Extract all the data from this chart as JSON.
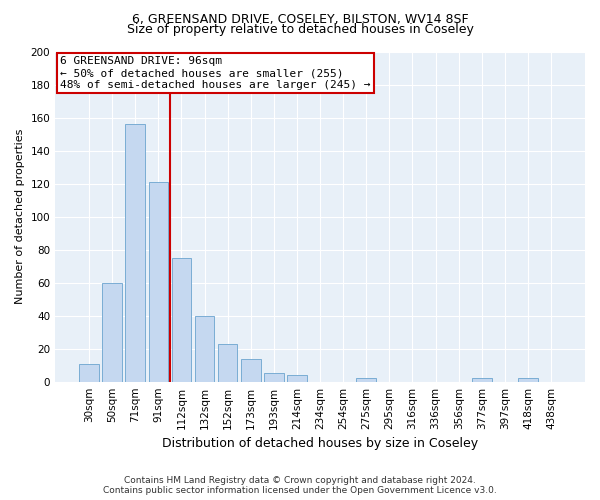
{
  "title1": "6, GREENSAND DRIVE, COSELEY, BILSTON, WV14 8SF",
  "title2": "Size of property relative to detached houses in Coseley",
  "xlabel": "Distribution of detached houses by size in Coseley",
  "ylabel": "Number of detached properties",
  "categories": [
    "30sqm",
    "50sqm",
    "71sqm",
    "91sqm",
    "112sqm",
    "132sqm",
    "152sqm",
    "173sqm",
    "193sqm",
    "214sqm",
    "234sqm",
    "254sqm",
    "275sqm",
    "295sqm",
    "316sqm",
    "336sqm",
    "356sqm",
    "377sqm",
    "397sqm",
    "418sqm",
    "438sqm"
  ],
  "values": [
    11,
    60,
    156,
    121,
    75,
    40,
    23,
    14,
    5,
    4,
    0,
    0,
    2,
    0,
    0,
    0,
    0,
    2,
    0,
    2,
    0
  ],
  "bar_color": "#c5d8f0",
  "bar_edge_color": "#7aadd4",
  "vline_color": "#cc0000",
  "vline_x": 3.5,
  "annotation_line1": "6 GREENSAND DRIVE: 96sqm",
  "annotation_line2": "← 50% of detached houses are smaller (255)",
  "annotation_line3": "48% of semi-detached houses are larger (245) →",
  "annotation_box_facecolor": "#ffffff",
  "annotation_box_edgecolor": "#cc0000",
  "ylim": [
    0,
    200
  ],
  "yticks": [
    0,
    20,
    40,
    60,
    80,
    100,
    120,
    140,
    160,
    180,
    200
  ],
  "footer": "Contains HM Land Registry data © Crown copyright and database right 2024.\nContains public sector information licensed under the Open Government Licence v3.0.",
  "fig_background_color": "#ffffff",
  "plot_background_color": "#e8f0f8",
  "grid_color": "#ffffff",
  "title1_fontsize": 9,
  "title2_fontsize": 9,
  "xlabel_fontsize": 9,
  "ylabel_fontsize": 8,
  "tick_fontsize": 7.5,
  "annotation_fontsize": 8,
  "footer_fontsize": 6.5
}
